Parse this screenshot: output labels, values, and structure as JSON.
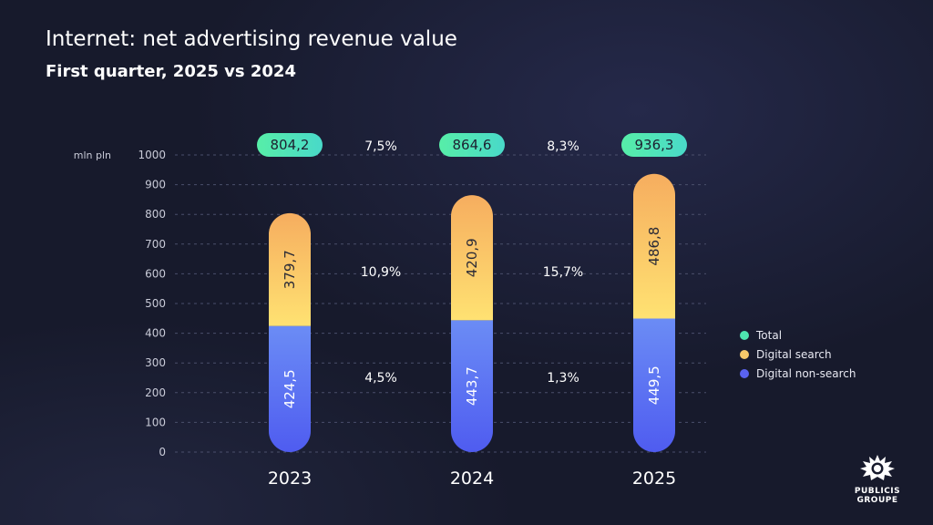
{
  "header": {
    "title": "Internet: net advertising revenue value",
    "subtitle": "First quarter, 2025 vs 2024"
  },
  "chart_data": {
    "type": "bar",
    "stacked": true,
    "ylabel": "mln pln",
    "ylim": [
      0,
      1000
    ],
    "yticks": [
      0,
      100,
      200,
      300,
      400,
      500,
      600,
      700,
      800,
      900,
      1000
    ],
    "grid": true,
    "categories": [
      "2023",
      "2024",
      "2025"
    ],
    "series": [
      {
        "name": "Digital non-search",
        "color": "#5a63f0",
        "values": [
          424.5,
          443.7,
          449.5
        ],
        "labels": [
          "424,5",
          "443,7",
          "449,5"
        ]
      },
      {
        "name": "Digital search",
        "color": "#f6c86a",
        "values": [
          379.7,
          420.9,
          486.8
        ],
        "labels": [
          "379,7",
          "420,9",
          "486,8"
        ]
      }
    ],
    "totals": {
      "name": "Total",
      "color": "#4ee6b0",
      "values": [
        804.2,
        864.6,
        936.3
      ],
      "labels": [
        "804,2",
        "864,6",
        "936,3"
      ]
    },
    "growth": {
      "total": [
        "7,5%",
        "8,3%"
      ],
      "digital_search": [
        "10,9%",
        "15,7%"
      ],
      "digital_non_search": [
        "4,5%",
        "1,3%"
      ]
    },
    "legend": {
      "position": "right",
      "entries": [
        {
          "name": "Total",
          "color": "#4ee6b0"
        },
        {
          "name": "Digital search",
          "color": "#f6c86a"
        },
        {
          "name": "Digital non-search",
          "color": "#5a63f0"
        }
      ]
    }
  },
  "logo": {
    "line1": "PUBLICIS",
    "line2": "GROUPE"
  }
}
